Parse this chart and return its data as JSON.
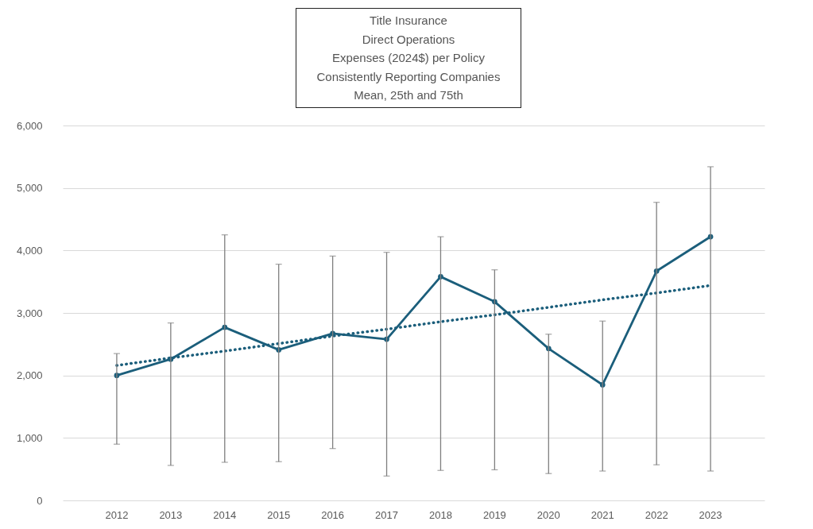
{
  "chart_data": {
    "type": "line",
    "title": "Title Insurance\nDirect Operations\nExpenses (2024$) per Policy\nConsistently Reporting Companies\nMean, 25th and 75th",
    "categories": [
      "2012",
      "2013",
      "2014",
      "2015",
      "2016",
      "2017",
      "2018",
      "2019",
      "2020",
      "2021",
      "2022",
      "2023"
    ],
    "series": [
      {
        "color": "#1b5e7b",
        "values": [
          2000,
          2260,
          2770,
          2410,
          2670,
          2580,
          3580,
          3180,
          2430,
          1850,
          3670,
          4220
        ],
        "errors": [
          [
            900,
            2350
          ],
          [
            560,
            2840
          ],
          [
            610,
            4250
          ],
          [
            620,
            3780
          ],
          [
            830,
            3910
          ],
          [
            390,
            3970
          ],
          [
            480,
            4220
          ],
          [
            490,
            3690
          ],
          [
            430,
            2660
          ],
          [
            470,
            2870
          ],
          [
            570,
            4770
          ],
          [
            470,
            5340
          ]
        ],
        "marker": "circle",
        "line_style": "solid"
      },
      {
        "type": "line",
        "color": "#1b5e7b",
        "values": [
          2160,
          2280,
          2390,
          2510,
          2630,
          2740,
          2860,
          2970,
          3090,
          3210,
          3320,
          3440
        ],
        "marker": "none",
        "line_style": "dotted"
      }
    ],
    "ylim": [
      0,
      6000
    ],
    "yticks": [
      {
        "value": 0,
        "label": "0"
      },
      {
        "value": 1000,
        "label": "1,000"
      },
      {
        "value": 2000,
        "label": "2,000"
      },
      {
        "value": 3000,
        "label": "3,000"
      },
      {
        "value": 4000,
        "label": "4,000"
      },
      {
        "value": 5000,
        "label": "5,000"
      },
      {
        "value": 6000,
        "label": "6,000"
      }
    ],
    "grid": "y"
  }
}
